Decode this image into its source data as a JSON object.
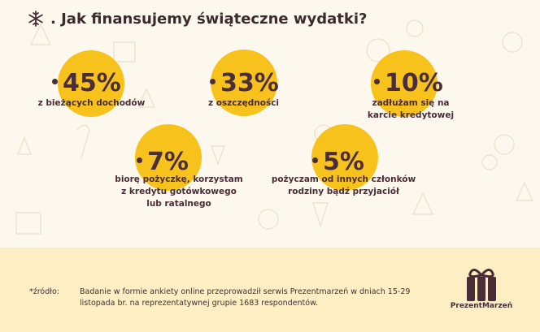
{
  "header": {
    "title": ". Jak finansujemy świąteczne wydatki?"
  },
  "chart_data": {
    "type": "table",
    "title": ". Jak finansujemy świąteczne wydatki?",
    "items": [
      {
        "value": "45%",
        "label": "z bieżących dochodów"
      },
      {
        "value": "33%",
        "label": "z oszczędności"
      },
      {
        "value": "10%",
        "label": "zadłużam się na\nkarcie kredytowej"
      },
      {
        "value": "7%",
        "label": "biorę pożyczkę, korzystam\nz kredytu gotówkowego\nlub ratalnego"
      },
      {
        "value": "5%",
        "label": "pożyczam od innych członków\nrodziny bądź przyjaciół"
      }
    ]
  },
  "footer": {
    "source_label": "*źródło:",
    "source_text": "Badanie w formie ankiety online przeprowadził serwis Prezentmarzeń w dniach 15-29 listopada br. na reprezentatywnej grupie 1683 respondentów.",
    "brand": "PrezentMarzeń"
  },
  "colors": {
    "accent": "#f8c21c",
    "text": "#4a2d36",
    "background": "#fdf8ee",
    "footer_bg": "#fdeec4"
  }
}
